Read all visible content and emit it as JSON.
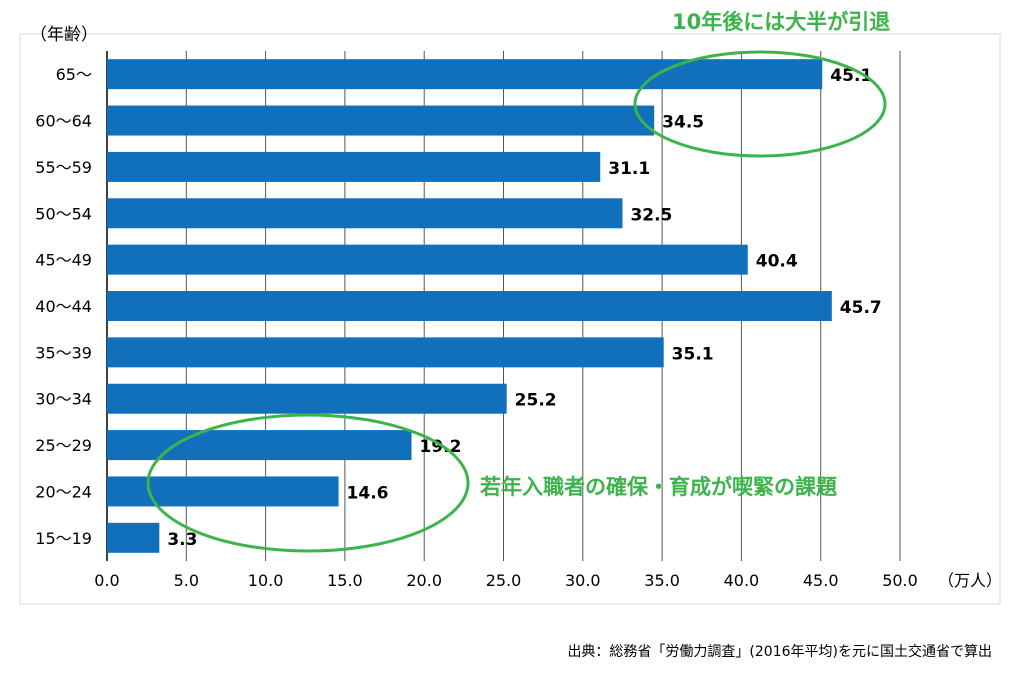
{
  "chart_data": {
    "type": "bar",
    "orientation": "horizontal",
    "ylabel": "（年齢）",
    "xlabel": "（万人）",
    "categories": [
      "65～",
      "60～64",
      "55～59",
      "50～54",
      "45～49",
      "40～44",
      "35～39",
      "30～34",
      "25～29",
      "20～24",
      "15～19"
    ],
    "values": [
      45.1,
      34.5,
      31.1,
      32.5,
      40.4,
      45.7,
      35.1,
      25.2,
      19.2,
      14.6,
      3.3
    ],
    "data_labels": [
      "45.1",
      "34.5",
      "31.1",
      "32.5",
      "40.4",
      "45.7",
      "35.1",
      "25.2",
      "19.2",
      "14.6",
      "3.3"
    ],
    "xlim": [
      0,
      50
    ],
    "xticks": [
      "0.0",
      "5.0",
      "10.0",
      "15.0",
      "20.0",
      "25.0",
      "30.0",
      "35.0",
      "40.0",
      "45.0",
      "50.0"
    ],
    "grid": true,
    "bar_color": "#1170bb",
    "annotations": [
      {
        "text": "10年後には大半が引退",
        "color": "#3cb44b",
        "highlights": [
          "65～",
          "60～64"
        ]
      },
      {
        "text": "若年入職者の確保・育成が喫緊の課題",
        "color": "#3cb44b",
        "highlights": [
          "25～29",
          "20～24",
          "15～19"
        ]
      }
    ]
  },
  "source": "出典：総務省「労働力調査」(2016年平均)を元に国土交通省で算出"
}
